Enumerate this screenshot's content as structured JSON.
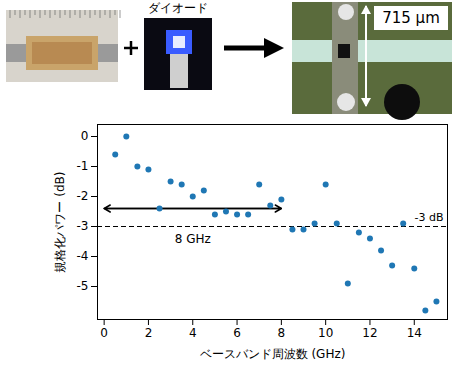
{
  "figure": {
    "diode_label": "ダイオード",
    "scale_label": "715 µm"
  },
  "chart_data": {
    "type": "scatter",
    "x_label": "ベースバンド周波数 (GHz)",
    "y_label": "規格化パワー (dB)",
    "x": [
      0.5,
      1.0,
      1.5,
      2.0,
      2.5,
      3.0,
      3.5,
      4.0,
      4.5,
      5.0,
      5.5,
      6.0,
      6.5,
      7.0,
      7.5,
      8.0,
      8.5,
      9.0,
      9.5,
      10.0,
      10.5,
      11.0,
      11.5,
      12.0,
      12.5,
      13.0,
      13.5,
      14.0,
      14.5,
      15.0
    ],
    "values": [
      -0.6,
      0.0,
      -1.0,
      -1.1,
      -2.4,
      -1.5,
      -1.6,
      -2.0,
      -1.8,
      -2.6,
      -2.5,
      -2.6,
      -2.6,
      -1.6,
      -2.3,
      -2.1,
      -3.1,
      -3.1,
      -2.9,
      -1.6,
      -2.9,
      -4.9,
      -3.2,
      -3.4,
      -3.8,
      -4.3,
      -2.9,
      -4.4,
      -5.8,
      -5.5
    ],
    "color": "#1f77b4",
    "marker": "circle",
    "xlim": [
      -0.3,
      15.5
    ],
    "xticks": [
      0,
      2,
      4,
      6,
      8,
      10,
      12,
      14
    ],
    "ylim": [
      -6.1,
      0.4
    ],
    "yticks": [
      0,
      -1,
      -2,
      -3,
      -4,
      -5
    ],
    "grid": false,
    "reference_line": {
      "value": -3,
      "label": "-3 dB",
      "line_style": "dashed"
    },
    "span": {
      "x": [
        0,
        8
      ],
      "label": "8 GHz"
    }
  }
}
